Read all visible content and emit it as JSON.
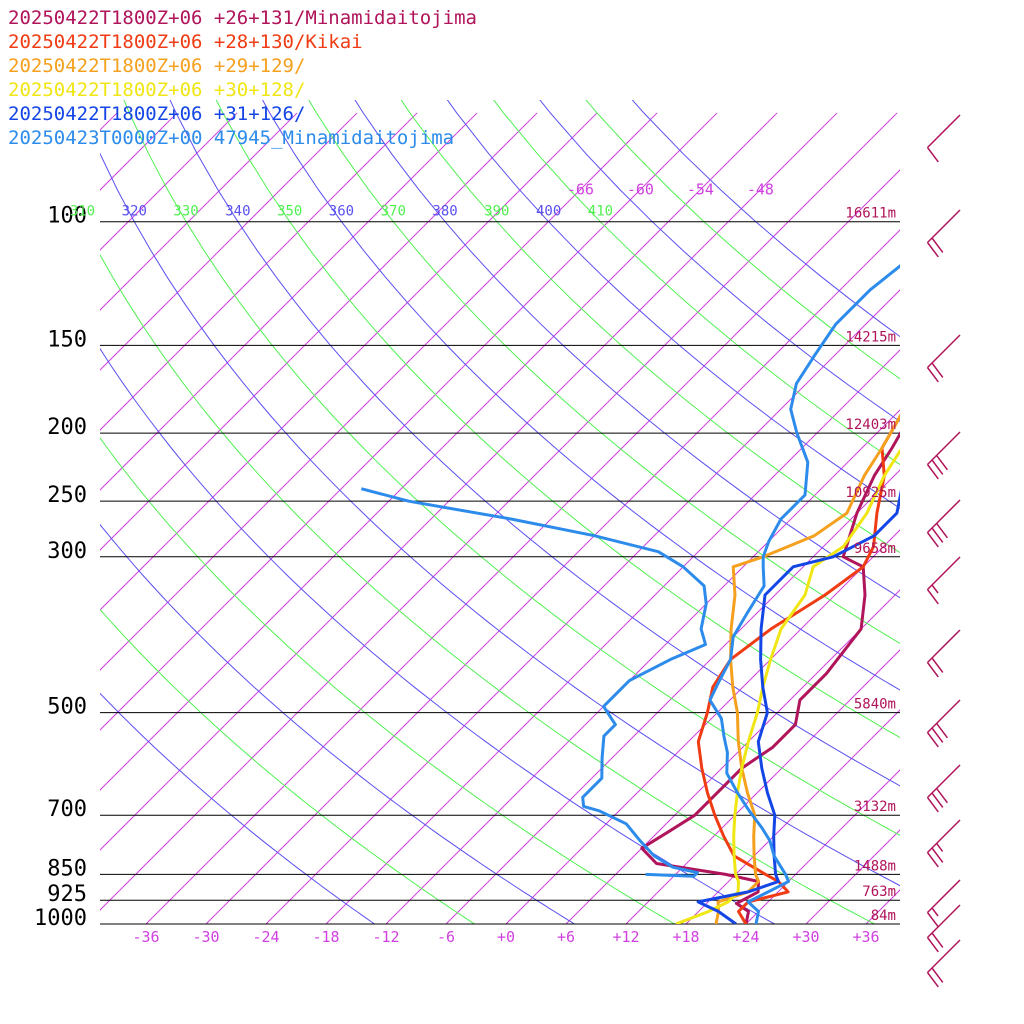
{
  "chart_data": {
    "type": "line",
    "legend": [
      {
        "label": "20250422T1800Z+06 +26+131/Minamidaitojima",
        "color": "#b0145a"
      },
      {
        "label": "20250422T1800Z+06 +28+130/Kikai",
        "color": "#f03c14"
      },
      {
        "label": "20250422T1800Z+06 +29+129/",
        "color": "#f5a01e"
      },
      {
        "label": "20250422T1800Z+06 +30+128/",
        "color": "#f0e614"
      },
      {
        "label": "20250422T1800Z+06 +31+126/",
        "color": "#1446e6"
      },
      {
        "label": "20250423T0000Z+00 47945_Minamidaitojima",
        "color": "#2d8ceb"
      }
    ],
    "pressure_levels": [
      {
        "p": 100,
        "label": "100",
        "height": "16611m"
      },
      {
        "p": 150,
        "label": "150",
        "height": "14215m"
      },
      {
        "p": 200,
        "label": "200",
        "height": "12403m"
      },
      {
        "p": 250,
        "label": "250",
        "height": "10925m"
      },
      {
        "p": 300,
        "label": "300",
        "height": "9658m"
      },
      {
        "p": 500,
        "label": "500",
        "height": "5840m"
      },
      {
        "p": 700,
        "label": "700",
        "height": "3132m"
      },
      {
        "p": 850,
        "label": "850",
        "height": "1488m"
      },
      {
        "p": 925,
        "label": "925",
        "height": "763m"
      },
      {
        "p": 1000,
        "label": "1000",
        "height": "84m"
      }
    ],
    "temperature_ticks": [
      "-36",
      "-30",
      "-24",
      "-18",
      "-12",
      "-6",
      "+0",
      "+6",
      "+12",
      "+18",
      "+24",
      "+30",
      "+36"
    ],
    "upper_isotherm_labels": [
      "-66",
      "-60",
      "-54",
      "-48"
    ],
    "theta_labels": [
      "310",
      "320",
      "330",
      "340",
      "350",
      "360",
      "370",
      "380",
      "390",
      "400",
      "410"
    ],
    "series": [
      {
        "color": "#b0145a",
        "points": [
          [
            24,
            1000
          ],
          [
            23,
            960
          ],
          [
            21,
            935
          ],
          [
            22,
            900
          ],
          [
            21,
            870
          ],
          [
            17,
            850
          ],
          [
            9,
            820
          ],
          [
            6,
            780
          ],
          [
            7,
            740
          ],
          [
            8,
            700
          ],
          [
            8,
            640
          ],
          [
            8,
            600
          ],
          [
            9,
            560
          ],
          [
            9,
            520
          ],
          [
            7,
            480
          ],
          [
            7,
            440
          ],
          [
            6,
            380
          ],
          [
            3,
            340
          ],
          [
            0,
            310
          ],
          [
            -3,
            300
          ],
          [
            -6,
            260
          ],
          [
            -8,
            230
          ],
          [
            -9,
            210
          ],
          [
            -11,
            180
          ],
          [
            -15,
            155
          ],
          [
            -17,
            140
          ],
          [
            -17,
            125
          ],
          [
            -15,
            100
          ]
        ]
      },
      {
        "color": "#f03c14",
        "points": [
          [
            24,
            1000
          ],
          [
            22,
            960
          ],
          [
            22,
            930
          ],
          [
            25,
            900
          ],
          [
            23,
            870
          ],
          [
            21,
            850
          ],
          [
            16,
            800
          ],
          [
            13,
            750
          ],
          [
            10,
            700
          ],
          [
            7,
            650
          ],
          [
            4,
            600
          ],
          [
            1,
            550
          ],
          [
            -1,
            500
          ],
          [
            -3,
            460
          ],
          [
            -4,
            420
          ],
          [
            -3,
            380
          ],
          [
            -1,
            340
          ],
          [
            0,
            310
          ],
          [
            -1,
            290
          ],
          [
            -4,
            260
          ],
          [
            -7,
            230
          ],
          [
            -10,
            210
          ],
          [
            -12,
            180
          ],
          [
            -14,
            155
          ],
          [
            -16,
            130
          ],
          [
            -16,
            110
          ],
          [
            -16,
            100
          ]
        ]
      },
      {
        "color": "#f5a01e",
        "points": [
          [
            21,
            1000
          ],
          [
            20,
            960
          ],
          [
            19,
            930
          ],
          [
            21,
            900
          ],
          [
            21,
            870
          ],
          [
            20,
            850
          ],
          [
            18,
            800
          ],
          [
            16,
            750
          ],
          [
            14,
            700
          ],
          [
            11,
            650
          ],
          [
            8,
            600
          ],
          [
            5,
            550
          ],
          [
            2,
            500
          ],
          [
            -1,
            460
          ],
          [
            -4,
            420
          ],
          [
            -7,
            380
          ],
          [
            -10,
            340
          ],
          [
            -13,
            310
          ],
          [
            -11,
            300
          ],
          [
            -8,
            280
          ],
          [
            -7,
            260
          ],
          [
            -9,
            230
          ],
          [
            -10,
            210
          ],
          [
            -12,
            180
          ],
          [
            -14,
            155
          ],
          [
            -15,
            130
          ],
          [
            -15,
            110
          ],
          [
            -15,
            100
          ]
        ]
      },
      {
        "color": "#f0e614",
        "points": [
          [
            17,
            1000
          ],
          [
            19,
            960
          ],
          [
            20,
            930
          ],
          [
            20,
            900
          ],
          [
            19,
            870
          ],
          [
            18,
            850
          ],
          [
            16,
            800
          ],
          [
            14,
            750
          ],
          [
            12,
            700
          ],
          [
            10,
            650
          ],
          [
            8,
            600
          ],
          [
            6,
            550
          ],
          [
            4,
            500
          ],
          [
            2,
            460
          ],
          [
            0,
            420
          ],
          [
            -2,
            380
          ],
          [
            -3,
            340
          ],
          [
            -5,
            310
          ],
          [
            -4,
            290
          ],
          [
            -5,
            260
          ],
          [
            -7,
            230
          ],
          [
            -8,
            210
          ],
          [
            -10,
            180
          ],
          [
            -11,
            155
          ],
          [
            -12,
            130
          ],
          [
            -12,
            110
          ],
          [
            -12,
            100
          ]
        ]
      },
      {
        "color": "#1446e6",
        "points": [
          [
            23,
            1000
          ],
          [
            20,
            960
          ],
          [
            17,
            930
          ],
          [
            21,
            900
          ],
          [
            23,
            870
          ],
          [
            22,
            850
          ],
          [
            20,
            800
          ],
          [
            18,
            750
          ],
          [
            16,
            700
          ],
          [
            13,
            650
          ],
          [
            10,
            600
          ],
          [
            7,
            550
          ],
          [
            5,
            500
          ],
          [
            2,
            460
          ],
          [
            -1,
            420
          ],
          [
            -4,
            380
          ],
          [
            -7,
            340
          ],
          [
            -7,
            310
          ],
          [
            -4,
            300
          ],
          [
            -2,
            280
          ],
          [
            -2,
            260
          ],
          [
            -5,
            230
          ],
          [
            -8,
            200
          ],
          [
            -9,
            175
          ],
          [
            -10,
            155
          ],
          [
            -11,
            135
          ],
          [
            -10,
            115
          ],
          [
            -10,
            100
          ]
        ]
      },
      {
        "color": "#2d8ceb",
        "points": [
          [
            25,
            1000
          ],
          [
            24,
            960
          ],
          [
            22,
            930
          ],
          [
            23,
            900
          ],
          [
            24,
            870
          ],
          [
            23,
            850
          ],
          [
            20,
            800
          ],
          [
            18,
            760
          ],
          [
            16,
            730
          ],
          [
            13,
            690
          ],
          [
            10,
            650
          ],
          [
            7,
            610
          ],
          [
            5,
            570
          ],
          [
            3,
            540
          ],
          [
            1,
            510
          ],
          [
            -2,
            480
          ],
          [
            -3,
            450
          ],
          [
            -4,
            420
          ],
          [
            -6,
            390
          ],
          [
            -7,
            360
          ],
          [
            -8,
            330
          ],
          [
            -10,
            310
          ],
          [
            -11,
            300
          ],
          [
            -12,
            285
          ],
          [
            -13,
            265
          ],
          [
            -13,
            245
          ],
          [
            -16,
            220
          ],
          [
            -20,
            200
          ],
          [
            -23,
            185
          ],
          [
            -25,
            170
          ],
          [
            -26,
            155
          ],
          [
            -27,
            140
          ],
          [
            -27,
            125
          ],
          [
            -26,
            110
          ],
          [
            -25,
            100
          ]
        ]
      },
      {
        "color": "#2d8ceb",
        "points": [
          [
            9,
            850
          ],
          [
            14,
            855
          ],
          [
            14,
            845
          ],
          [
            11,
            830
          ],
          [
            8,
            800
          ],
          [
            5,
            760
          ],
          [
            2,
            720
          ],
          [
            -2,
            690
          ],
          [
            -4,
            680
          ],
          [
            -5,
            660
          ],
          [
            -5,
            620
          ],
          [
            -7,
            580
          ],
          [
            -9,
            540
          ],
          [
            -9,
            520
          ],
          [
            -10,
            510
          ],
          [
            -12,
            490
          ],
          [
            -12,
            470
          ],
          [
            -12,
            450
          ],
          [
            -10,
            420
          ],
          [
            -8,
            400
          ],
          [
            -10,
            380
          ],
          [
            -12,
            350
          ],
          [
            -14,
            330
          ],
          [
            -18,
            310
          ],
          [
            -22,
            295
          ],
          [
            -30,
            280
          ],
          [
            -40,
            265
          ],
          [
            -52,
            250
          ],
          [
            -58,
            240
          ]
        ]
      }
    ]
  }
}
